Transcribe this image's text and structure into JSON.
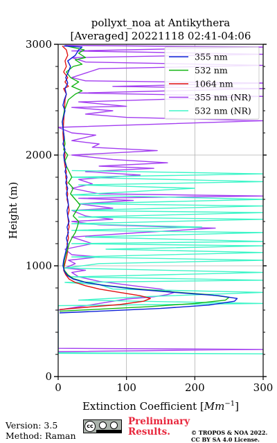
{
  "chart_data": {
    "type": "line",
    "title": "pollyxt_noa at Antikythera",
    "subtitle": "[Averaged] 20221118 02:41-04:06",
    "xlabel": "Extinction Coefficient [",
    "xlabel_unit": "Mm",
    "xlabel_exp": "−1",
    "xlabel_close": "]",
    "ylabel": "Height (m)",
    "xlim": [
      0,
      300
    ],
    "ylim": [
      0,
      3000
    ],
    "xticks": [
      0,
      100,
      200,
      300
    ],
    "yticks": [
      0,
      1000,
      2000,
      3000
    ],
    "grid": true,
    "legend_position": "top-right",
    "series": [
      {
        "name": "355 nm",
        "color": "#0a1fd6",
        "points": [
          [
            2,
            575
          ],
          [
            60,
            590
          ],
          [
            150,
            615
          ],
          [
            220,
            645
          ],
          [
            258,
            680
          ],
          [
            262,
            705
          ],
          [
            235,
            730
          ],
          [
            180,
            755
          ],
          [
            120,
            785
          ],
          [
            70,
            820
          ],
          [
            40,
            850
          ],
          [
            22,
            880
          ],
          [
            14,
            910
          ],
          [
            9,
            950
          ],
          [
            7,
            1000
          ],
          [
            8,
            1050
          ],
          [
            10,
            1100
          ],
          [
            12,
            1150
          ],
          [
            14,
            1200
          ],
          [
            12,
            1250
          ],
          [
            15,
            1300
          ],
          [
            13,
            1350
          ],
          [
            16,
            1400
          ],
          [
            14,
            1450
          ],
          [
            13,
            1500
          ],
          [
            15,
            1550
          ],
          [
            14,
            1600
          ],
          [
            12,
            1650
          ],
          [
            14,
            1700
          ],
          [
            11,
            1750
          ],
          [
            13,
            1800
          ],
          [
            10,
            1850
          ],
          [
            12,
            1900
          ],
          [
            9,
            1950
          ],
          [
            8,
            2000
          ],
          [
            10,
            2050
          ],
          [
            7,
            2100
          ],
          [
            9,
            2150
          ],
          [
            8,
            2200
          ],
          [
            6,
            2300
          ],
          [
            8,
            2350
          ],
          [
            10,
            2400
          ],
          [
            7,
            2450
          ],
          [
            9,
            2500
          ],
          [
            12,
            2550
          ],
          [
            10,
            2600
          ],
          [
            14,
            2650
          ],
          [
            11,
            2700
          ],
          [
            15,
            2750
          ],
          [
            18,
            2800
          ],
          [
            14,
            2850
          ],
          [
            25,
            2900
          ],
          [
            30,
            2950
          ],
          [
            35,
            2975
          ],
          [
            8,
            2985
          ]
        ]
      },
      {
        "name": "532 nm",
        "color": "#12b512",
        "points": [
          [
            2,
            590
          ],
          [
            50,
            605
          ],
          [
            130,
            630
          ],
          [
            200,
            660
          ],
          [
            245,
            690
          ],
          [
            250,
            715
          ],
          [
            220,
            740
          ],
          [
            165,
            765
          ],
          [
            110,
            795
          ],
          [
            65,
            825
          ],
          [
            38,
            855
          ],
          [
            22,
            885
          ],
          [
            14,
            920
          ],
          [
            9,
            960
          ],
          [
            8,
            1000
          ],
          [
            9,
            1050
          ],
          [
            11,
            1100
          ],
          [
            14,
            1150
          ],
          [
            16,
            1200
          ],
          [
            20,
            1250
          ],
          [
            25,
            1300
          ],
          [
            28,
            1350
          ],
          [
            30,
            1400
          ],
          [
            22,
            1450
          ],
          [
            27,
            1500
          ],
          [
            32,
            1550
          ],
          [
            25,
            1600
          ],
          [
            18,
            1650
          ],
          [
            22,
            1700
          ],
          [
            15,
            1750
          ],
          [
            20,
            1800
          ],
          [
            16,
            1850
          ],
          [
            12,
            1900
          ],
          [
            10,
            1950
          ],
          [
            14,
            2000
          ],
          [
            8,
            2050
          ],
          [
            10,
            2100
          ],
          [
            8,
            2200
          ],
          [
            6,
            2300
          ],
          [
            9,
            2400
          ],
          [
            12,
            2450
          ],
          [
            15,
            2500
          ],
          [
            25,
            2550
          ],
          [
            35,
            2580
          ],
          [
            20,
            2620
          ],
          [
            30,
            2660
          ],
          [
            18,
            2700
          ],
          [
            12,
            2750
          ],
          [
            22,
            2800
          ],
          [
            35,
            2820
          ],
          [
            25,
            2860
          ],
          [
            40,
            2880
          ],
          [
            30,
            2920
          ],
          [
            38,
            2950
          ],
          [
            12,
            2985
          ]
        ]
      },
      {
        "name": "1064 nm",
        "color": "#e00f0f",
        "points": [
          [
            2,
            605
          ],
          [
            40,
            625
          ],
          [
            90,
            650
          ],
          [
            125,
            680
          ],
          [
            135,
            705
          ],
          [
            120,
            730
          ],
          [
            90,
            760
          ],
          [
            60,
            790
          ],
          [
            40,
            820
          ],
          [
            25,
            850
          ],
          [
            16,
            880
          ],
          [
            11,
            920
          ],
          [
            8,
            960
          ],
          [
            9,
            1000
          ],
          [
            11,
            1050
          ],
          [
            13,
            1100
          ],
          [
            14,
            1150
          ],
          [
            13,
            1200
          ],
          [
            15,
            1250
          ],
          [
            14,
            1300
          ],
          [
            16,
            1350
          ],
          [
            15,
            1400
          ],
          [
            14,
            1450
          ],
          [
            16,
            1500
          ],
          [
            15,
            1550
          ],
          [
            13,
            1600
          ],
          [
            14,
            1650
          ],
          [
            12,
            1700
          ],
          [
            13,
            1750
          ],
          [
            11,
            1800
          ],
          [
            12,
            1850
          ],
          [
            10,
            1900
          ],
          [
            9,
            1950
          ],
          [
            10,
            2000
          ],
          [
            8,
            2100
          ],
          [
            7,
            2200
          ],
          [
            8,
            2300
          ],
          [
            9,
            2400
          ],
          [
            10,
            2500
          ],
          [
            12,
            2550
          ],
          [
            8,
            2600
          ],
          [
            15,
            2620
          ],
          [
            10,
            2660
          ],
          [
            14,
            2700
          ],
          [
            8,
            2750
          ],
          [
            12,
            2800
          ],
          [
            10,
            2850
          ],
          [
            14,
            2900
          ],
          [
            12,
            2950
          ],
          [
            6,
            2985
          ]
        ]
      },
      {
        "name": "355 nm (NR)",
        "color": "#a23cf0",
        "points": [
          [
            0,
            225
          ],
          [
            300,
            245
          ],
          [
            0,
            255
          ],
          [
            0,
            600
          ],
          [
            100,
            700
          ],
          [
            140,
            720
          ],
          [
            160,
            740
          ],
          [
            170,
            760
          ],
          [
            150,
            790
          ],
          [
            110,
            820
          ],
          [
            60,
            860
          ],
          [
            30,
            900
          ],
          [
            20,
            940
          ],
          [
            40,
            960
          ],
          [
            10,
            980
          ],
          [
            25,
            1020
          ],
          [
            15,
            1050
          ],
          [
            60,
            1080
          ],
          [
            20,
            1100
          ],
          [
            10,
            1150
          ],
          [
            50,
            1200
          ],
          [
            20,
            1260
          ],
          [
            120,
            1300
          ],
          [
            230,
            1340
          ],
          [
            60,
            1370
          ],
          [
            20,
            1400
          ],
          [
            80,
            1420
          ],
          [
            40,
            1450
          ],
          [
            20,
            1500
          ],
          [
            80,
            1520
          ],
          [
            30,
            1560
          ],
          [
            110,
            1590
          ],
          [
            30,
            1610
          ],
          [
            300,
            1630
          ],
          [
            60,
            1650
          ],
          [
            20,
            1700
          ],
          [
            50,
            1740
          ],
          [
            30,
            1780
          ],
          [
            120,
            1820
          ],
          [
            40,
            1850
          ],
          [
            140,
            1880
          ],
          [
            60,
            1900
          ],
          [
            160,
            1930
          ],
          [
            80,
            1960
          ],
          [
            20,
            2000
          ],
          [
            145,
            2040
          ],
          [
            50,
            2070
          ],
          [
            60,
            2100
          ],
          [
            20,
            2130
          ],
          [
            55,
            2180
          ],
          [
            20,
            2200
          ],
          [
            0,
            2250
          ],
          [
            300,
            2310
          ],
          [
            100,
            2340
          ],
          [
            40,
            2370
          ],
          [
            80,
            2400
          ],
          [
            20,
            2430
          ],
          [
            100,
            2440
          ],
          [
            30,
            2480
          ],
          [
            300,
            2530
          ],
          [
            30,
            2560
          ],
          [
            300,
            2600
          ],
          [
            80,
            2620
          ],
          [
            300,
            2650
          ],
          [
            40,
            2670
          ],
          [
            20,
            2700
          ],
          [
            60,
            2780
          ],
          [
            300,
            2810
          ],
          [
            40,
            2840
          ],
          [
            20,
            2880
          ],
          [
            300,
            2910
          ],
          [
            20,
            2940
          ],
          [
            300,
            2975
          ],
          [
            10,
            2990
          ]
        ]
      },
      {
        "name": "532 nm (NR)",
        "color": "#3df5c8",
        "points": [
          [
            0,
            215
          ],
          [
            300,
            205
          ],
          [
            0,
            210
          ],
          [
            0,
            640
          ],
          [
            300,
            660
          ],
          [
            30,
            690
          ],
          [
            120,
            720
          ],
          [
            300,
            760
          ],
          [
            80,
            790
          ],
          [
            60,
            830
          ],
          [
            10,
            850
          ],
          [
            300,
            870
          ],
          [
            20,
            900
          ],
          [
            300,
            940
          ],
          [
            10,
            980
          ],
          [
            60,
            1020
          ],
          [
            300,
            1050
          ],
          [
            20,
            1080
          ],
          [
            300,
            1120
          ],
          [
            70,
            1150
          ],
          [
            300,
            1180
          ],
          [
            20,
            1200
          ],
          [
            300,
            1220
          ],
          [
            40,
            1260
          ],
          [
            300,
            1300
          ],
          [
            20,
            1320
          ],
          [
            210,
            1350
          ],
          [
            20,
            1380
          ],
          [
            300,
            1420
          ],
          [
            30,
            1440
          ],
          [
            300,
            1480
          ],
          [
            20,
            1500
          ],
          [
            300,
            1540
          ],
          [
            30,
            1560
          ],
          [
            300,
            1600
          ],
          [
            20,
            1640
          ],
          [
            200,
            1700
          ],
          [
            30,
            1730
          ],
          [
            300,
            1760
          ],
          [
            20,
            1800
          ],
          [
            300,
            1830
          ],
          [
            20,
            1860
          ]
        ]
      }
    ]
  },
  "footer": {
    "version": "Version: 3.5",
    "method": "Method: Raman",
    "preliminary_line1": "Preliminary",
    "preliminary_line2": "Results.",
    "copyright_line1": "© TROPOS & NOA 2022.",
    "copyright_line2": "CC BY SA 4.0 License."
  }
}
